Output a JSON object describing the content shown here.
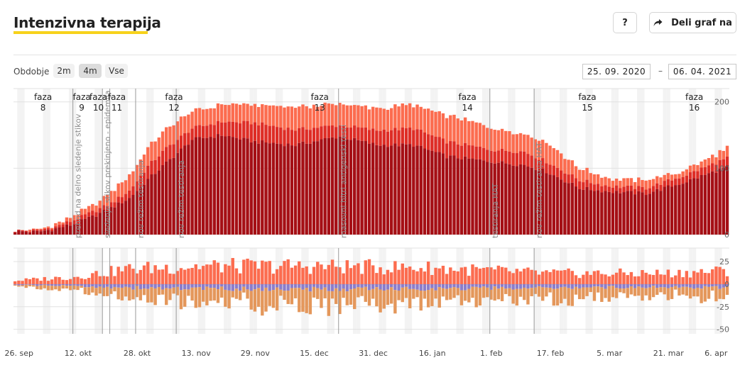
{
  "header": {
    "title": "Intenzivna terapija",
    "help_label": "?",
    "share_label": "Deli graf na"
  },
  "controls": {
    "period_label": "Obdobje",
    "periods": [
      "2m",
      "4m",
      "Vse"
    ],
    "active_period": "4m",
    "date_from": "25. 09. 2020",
    "date_sep": "–",
    "date_to": "06. 04. 2021"
  },
  "colors": {
    "icu": "#a50f15",
    "mid": "#de2d26",
    "top": "#fc6c4f",
    "in": "#fc6c4f",
    "out_purple": "#8c7dc9",
    "out_orange": "#e4975b",
    "accent": "#f7d21b"
  },
  "chart_data": [
    {
      "type": "bar",
      "stacked": true,
      "ylim": [
        0,
        220
      ],
      "yticks": [
        "0",
        "100",
        "200"
      ],
      "date_range": [
        "2020-09-25",
        "2021-04-06"
      ],
      "x_tick_labels": [
        "26. sep",
        "12. okt",
        "28. okt",
        "13. nov",
        "29. nov",
        "15. dec",
        "31. dec",
        "16. jan",
        "1. feb",
        "17. feb",
        "5. mar",
        "21. mar",
        "6. apr"
      ],
      "x_tick_dates": [
        "2020-09-26",
        "2020-10-12",
        "2020-10-28",
        "2020-11-13",
        "2020-11-29",
        "2020-12-15",
        "2020-12-31",
        "2021-01-16",
        "2021-02-01",
        "2021-02-17",
        "2021-03-05",
        "2021-03-21",
        "2021-04-06"
      ],
      "phases": [
        {
          "label": "faza",
          "num": "8",
          "date": "2020-09-25"
        },
        {
          "label": "faza",
          "num": "9",
          "date": "2020-10-11"
        },
        {
          "label": "faza",
          "num": "10",
          "date": "2020-10-16"
        },
        {
          "label": "faza",
          "num": "11",
          "date": "2020-10-20"
        },
        {
          "label": "faza",
          "num": "12",
          "date": "2020-10-26"
        },
        {
          "label": "faza",
          "num": "13",
          "date": "2020-11-20"
        },
        {
          "label": "faza",
          "num": "14",
          "date": "2021-01-13"
        },
        {
          "label": "faza",
          "num": "15",
          "date": "2021-02-08"
        },
        {
          "label": "faza",
          "num": "16",
          "date": "2021-03-19"
        }
      ],
      "events": [
        {
          "date": "2020-10-11",
          "label": "prehod na delno sledenje stikov"
        },
        {
          "date": "2020-10-19",
          "label": "sledenje stikov prekinjeno - epidemija"
        },
        {
          "date": "2020-10-21",
          "label": ""
        },
        {
          "date": "2020-10-28",
          "label": "nov režim testiranja"
        },
        {
          "date": "2020-11-08",
          "label": "nov režim testiranja"
        },
        {
          "date": "2020-12-22",
          "label": "masovni hitri antigenski testi"
        },
        {
          "date": "2021-02-01",
          "label": "testiranja HAT"
        },
        {
          "date": "2021-02-13",
          "label": "nov režim testiranja HAT"
        }
      ],
      "anchors": [
        {
          "date": "2020-09-25",
          "icu": 5,
          "mid": 6,
          "top": 7
        },
        {
          "date": "2020-10-01",
          "icu": 4,
          "mid": 6,
          "top": 7
        },
        {
          "date": "2020-10-06",
          "icu": 9,
          "mid": 12,
          "top": 15
        },
        {
          "date": "2020-10-11",
          "icu": 16,
          "mid": 22,
          "top": 28
        },
        {
          "date": "2020-10-16",
          "icu": 27,
          "mid": 34,
          "top": 44
        },
        {
          "date": "2020-10-21",
          "icu": 40,
          "mid": 47,
          "top": 64
        },
        {
          "date": "2020-10-26",
          "icu": 55,
          "mid": 66,
          "top": 90
        },
        {
          "date": "2020-10-31",
          "icu": 83,
          "mid": 103,
          "top": 130
        },
        {
          "date": "2020-11-05",
          "icu": 108,
          "mid": 130,
          "top": 160
        },
        {
          "date": "2020-11-12",
          "icu": 143,
          "mid": 160,
          "top": 185
        },
        {
          "date": "2020-11-20",
          "icu": 150,
          "mid": 170,
          "top": 196
        },
        {
          "date": "2020-11-29",
          "icu": 140,
          "mid": 168,
          "top": 195
        },
        {
          "date": "2020-12-10",
          "icu": 135,
          "mid": 158,
          "top": 192
        },
        {
          "date": "2020-12-22",
          "icu": 148,
          "mid": 165,
          "top": 197
        },
        {
          "date": "2021-01-01",
          "icu": 135,
          "mid": 157,
          "top": 190
        },
        {
          "date": "2021-01-11",
          "icu": 135,
          "mid": 160,
          "top": 195
        },
        {
          "date": "2021-01-20",
          "icu": 118,
          "mid": 140,
          "top": 180
        },
        {
          "date": "2021-02-01",
          "icu": 110,
          "mid": 128,
          "top": 162
        },
        {
          "date": "2021-02-10",
          "icu": 105,
          "mid": 125,
          "top": 152
        },
        {
          "date": "2021-02-16",
          "icu": 95,
          "mid": 110,
          "top": 140
        },
        {
          "date": "2021-02-25",
          "icu": 70,
          "mid": 82,
          "top": 100
        },
        {
          "date": "2021-03-05",
          "icu": 65,
          "mid": 73,
          "top": 84
        },
        {
          "date": "2021-03-15",
          "icu": 62,
          "mid": 70,
          "top": 82
        },
        {
          "date": "2021-03-25",
          "icu": 78,
          "mid": 88,
          "top": 95
        },
        {
          "date": "2021-04-06",
          "icu": 102,
          "mid": 115,
          "top": 130
        }
      ]
    },
    {
      "type": "bar",
      "stacked": true,
      "diverging": true,
      "ylim": [
        -55,
        40
      ],
      "yticks": [
        "25",
        "0",
        "-25",
        "-50"
      ],
      "date_range": [
        "2020-09-25",
        "2021-04-06"
      ],
      "anchors": [
        {
          "date": "2020-09-25",
          "in": 4,
          "out_purple": -1,
          "out_orange": -2
        },
        {
          "date": "2020-10-11",
          "in": 8,
          "out_purple": -2,
          "out_orange": -4
        },
        {
          "date": "2020-10-26",
          "in": 17,
          "out_purple": -4,
          "out_orange": -9
        },
        {
          "date": "2020-11-13",
          "in": 20,
          "out_purple": -5,
          "out_orange": -15
        },
        {
          "date": "2020-12-15",
          "in": 20,
          "out_purple": -6,
          "out_orange": -17
        },
        {
          "date": "2021-01-16",
          "in": 18,
          "out_purple": -5,
          "out_orange": -16
        },
        {
          "date": "2021-02-17",
          "in": 12,
          "out_purple": -4,
          "out_orange": -12
        },
        {
          "date": "2021-03-21",
          "in": 12,
          "out_purple": -3,
          "out_orange": -9
        },
        {
          "date": "2021-04-06",
          "in": 15,
          "out_purple": -4,
          "out_orange": -12
        }
      ]
    }
  ]
}
